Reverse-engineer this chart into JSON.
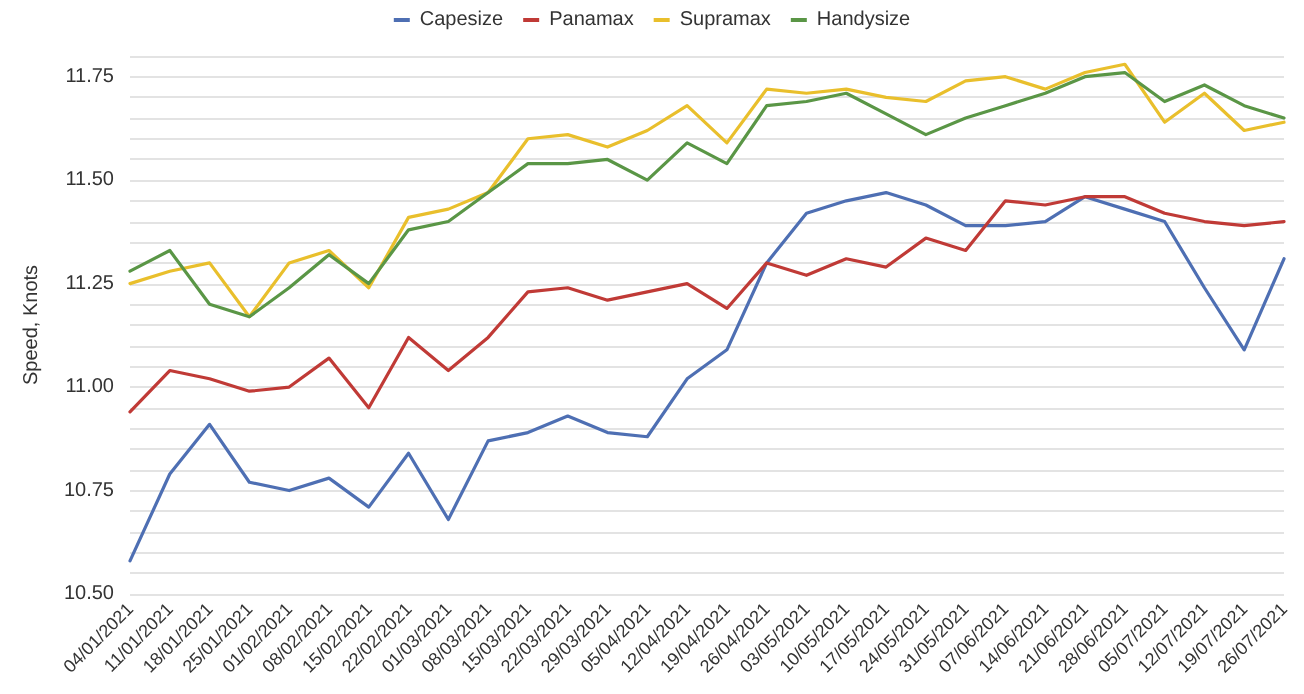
{
  "chart_data": {
    "type": "line",
    "ylabel": "Speed, Knots",
    "categories": [
      "04/01/2021",
      "11/01/2021",
      "18/01/2021",
      "25/01/2021",
      "01/02/2021",
      "08/02/2021",
      "15/02/2021",
      "22/02/2021",
      "01/03/2021",
      "08/03/2021",
      "15/03/2021",
      "22/03/2021",
      "29/03/2021",
      "05/04/2021",
      "12/04/2021",
      "19/04/2021",
      "26/04/2021",
      "03/05/2021",
      "10/05/2021",
      "17/05/2021",
      "24/05/2021",
      "31/05/2021",
      "07/06/2021",
      "14/06/2021",
      "21/06/2021",
      "28/06/2021",
      "05/07/2021",
      "12/07/2021",
      "19/07/2021",
      "26/07/2021"
    ],
    "series": [
      {
        "name": "Capesize",
        "color": "#4e6fb3",
        "values": [
          10.58,
          10.79,
          10.91,
          10.77,
          10.75,
          10.78,
          10.71,
          10.84,
          10.68,
          10.87,
          10.89,
          10.93,
          10.89,
          10.88,
          11.02,
          11.09,
          11.3,
          11.42,
          11.45,
          11.47,
          11.44,
          11.39,
          11.39,
          11.4,
          11.46,
          11.43,
          11.4,
          11.24,
          11.09,
          11.31
        ]
      },
      {
        "name": "Panamax",
        "color": "#c03a36",
        "values": [
          10.94,
          11.04,
          11.02,
          10.99,
          11.0,
          11.07,
          10.95,
          11.12,
          11.04,
          11.12,
          11.23,
          11.24,
          11.21,
          11.23,
          11.25,
          11.19,
          11.3,
          11.27,
          11.31,
          11.29,
          11.36,
          11.33,
          11.45,
          11.44,
          11.46,
          11.46,
          11.42,
          11.4,
          11.39,
          11.4
        ]
      },
      {
        "name": "Supramax",
        "color": "#e9bf2c",
        "values": [
          11.25,
          11.28,
          11.3,
          11.17,
          11.3,
          11.33,
          11.24,
          11.41,
          11.43,
          11.47,
          11.6,
          11.61,
          11.58,
          11.62,
          11.68,
          11.59,
          11.72,
          11.71,
          11.72,
          11.7,
          11.69,
          11.74,
          11.75,
          11.72,
          11.76,
          11.78,
          11.64,
          11.71,
          11.62,
          11.64
        ]
      },
      {
        "name": "Handysize",
        "color": "#5a9646",
        "values": [
          11.28,
          11.33,
          11.2,
          11.17,
          11.24,
          11.32,
          11.25,
          11.38,
          11.4,
          11.47,
          11.54,
          11.54,
          11.55,
          11.5,
          11.59,
          11.54,
          11.68,
          11.69,
          11.71,
          11.66,
          11.61,
          11.65,
          11.68,
          11.71,
          11.75,
          11.76,
          11.69,
          11.73,
          11.68,
          11.65
        ]
      }
    ],
    "ylim": [
      10.5,
      11.8
    ],
    "yticks": [
      {
        "value": 10.5,
        "label": "10.50"
      },
      {
        "value": 10.55,
        "label": null
      },
      {
        "value": 10.6,
        "label": null
      },
      {
        "value": 10.65,
        "label": null
      },
      {
        "value": 10.7,
        "label": null
      },
      {
        "value": 10.75,
        "label": "10.75"
      },
      {
        "value": 10.8,
        "label": null
      },
      {
        "value": 10.85,
        "label": null
      },
      {
        "value": 10.9,
        "label": null
      },
      {
        "value": 10.95,
        "label": null
      },
      {
        "value": 11.0,
        "label": "11.00"
      },
      {
        "value": 11.05,
        "label": null
      },
      {
        "value": 11.1,
        "label": null
      },
      {
        "value": 11.15,
        "label": null
      },
      {
        "value": 11.2,
        "label": null
      },
      {
        "value": 11.25,
        "label": "11.25"
      },
      {
        "value": 11.3,
        "label": null
      },
      {
        "value": 11.35,
        "label": null
      },
      {
        "value": 11.4,
        "label": null
      },
      {
        "value": 11.45,
        "label": null
      },
      {
        "value": 11.5,
        "label": "11.50"
      },
      {
        "value": 11.55,
        "label": null
      },
      {
        "value": 11.6,
        "label": null
      },
      {
        "value": 11.65,
        "label": null
      },
      {
        "value": 11.7,
        "label": null
      },
      {
        "value": 11.75,
        "label": "11.75"
      },
      {
        "value": 11.8,
        "label": null
      }
    ],
    "grid": "y",
    "legend": "top",
    "marker": "none",
    "line_style": "solid"
  }
}
